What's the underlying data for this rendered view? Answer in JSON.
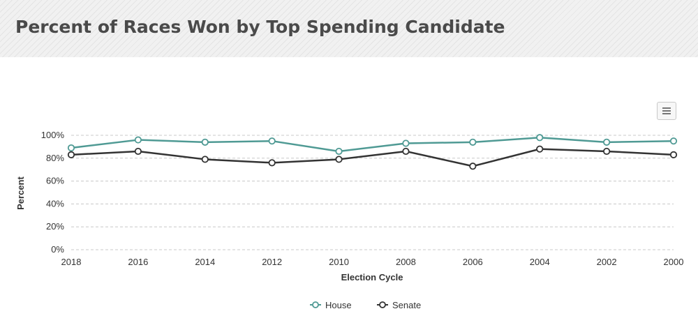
{
  "title": "Percent of Races Won by Top Spending Candidate",
  "menu_icon": "hamburger-menu-icon",
  "colors": {
    "house": "#4f9a94",
    "senate": "#333333",
    "grid": "#c8c8c8"
  },
  "chart_data": {
    "type": "line",
    "title": "Percent of Races Won by Top Spending Candidate",
    "xlabel": "Election Cycle",
    "ylabel": "Percent",
    "categories": [
      "2018",
      "2016",
      "2014",
      "2012",
      "2010",
      "2008",
      "2006",
      "2004",
      "2002",
      "2000"
    ],
    "yticks": [
      "0%",
      "20%",
      "40%",
      "60%",
      "80%",
      "100%"
    ],
    "ylim": [
      0,
      100
    ],
    "grid": true,
    "legend": "bottom-center",
    "series": [
      {
        "name": "House",
        "color": "#4f9a94",
        "values": [
          89,
          96,
          94,
          95,
          86,
          93,
          94,
          98,
          94,
          95
        ]
      },
      {
        "name": "Senate",
        "color": "#333333",
        "values": [
          83,
          86,
          79,
          76,
          79,
          86,
          73,
          88,
          86,
          83
        ]
      }
    ]
  }
}
